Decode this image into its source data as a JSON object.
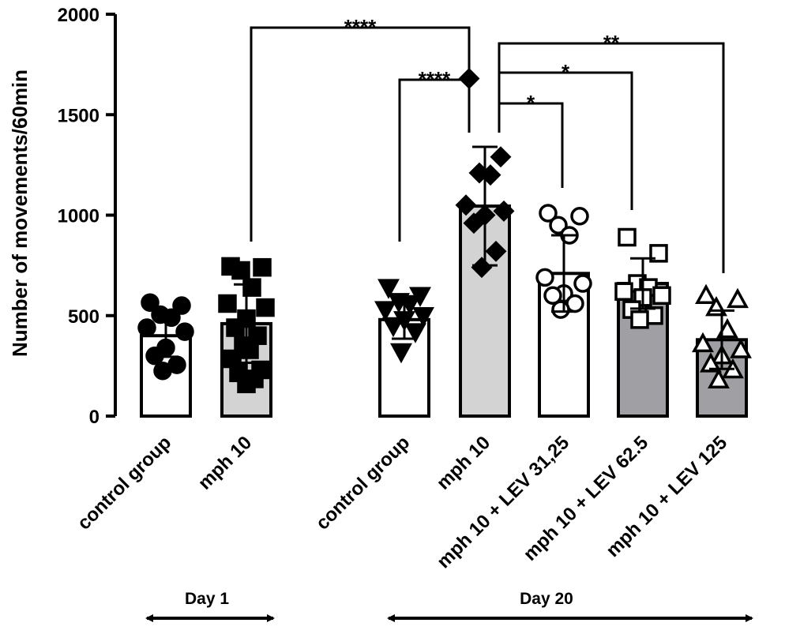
{
  "chart_data": {
    "type": "bar",
    "ylabel": "Number of movements/60min",
    "ylim": [
      0,
      2000
    ],
    "yticks": [
      "0",
      "500",
      "1000",
      "1500",
      "2000"
    ],
    "groups": [
      {
        "label": "Day 1",
        "categories": [
          "control group",
          "mph 10"
        ]
      },
      {
        "label": "Day 20",
        "categories": [
          "control group",
          "mph 10",
          "mph 10 + LEV 31,25",
          "mph 10 + LEV 62.5",
          "mph 10 + LEV 125"
        ]
      }
    ],
    "bars": [
      {
        "category": "control group",
        "day": "Day 1",
        "mean": 400,
        "sd": 105,
        "fill": "#ffffff",
        "marker": "circle-filled",
        "points": [
          565,
          550,
          505,
          490,
          440,
          420,
          340,
          300,
          255,
          225
        ]
      },
      {
        "category": "mph 10",
        "day": "Day 1",
        "mean": 460,
        "sd": 195,
        "fill": "#d3d3d3",
        "marker": "square-filled",
        "points": [
          745,
          740,
          725,
          640,
          560,
          540,
          485,
          440,
          400,
          350,
          330,
          285,
          230,
          215,
          185,
          160
        ]
      },
      {
        "category": "control group",
        "day": "Day 20",
        "mean": 480,
        "sd": 95,
        "fill": "#ffffff",
        "marker": "triangle-down-filled",
        "points": [
          640,
          600,
          570,
          560,
          530,
          500,
          480,
          450,
          420,
          320
        ]
      },
      {
        "category": "mph 10",
        "day": "Day 20",
        "mean": 1045,
        "sd": 295,
        "fill": "#d3d3d3",
        "marker": "diamond-filled",
        "points": [
          1680,
          1290,
          1210,
          1200,
          1050,
          1020,
          1000,
          960,
          820,
          740
        ]
      },
      {
        "category": "mph 10 + LEV 31,25",
        "day": "Day 20",
        "mean": 710,
        "sd": 190,
        "fill": "#ffffff",
        "marker": "circle-open",
        "points": [
          1010,
          995,
          950,
          900,
          690,
          660,
          610,
          600,
          560,
          530
        ]
      },
      {
        "category": "mph 10 + LEV 62.5",
        "day": "Day 20",
        "mean": 660,
        "sd": 125,
        "fill": "#a0a0a4",
        "marker": "square-open",
        "points": [
          890,
          810,
          660,
          640,
          620,
          600,
          590,
          530,
          500,
          480
        ]
      },
      {
        "category": "mph 10 + LEV 125",
        "day": "Day 20",
        "mean": 380,
        "sd": 145,
        "fill": "#a0a0a4",
        "marker": "triangle-up-open",
        "points": [
          600,
          580,
          540,
          430,
          360,
          330,
          300,
          260,
          230,
          180
        ]
      }
    ],
    "significance": [
      {
        "from": 1,
        "to": 3,
        "label": "****"
      },
      {
        "from": 2,
        "to": 3,
        "label": "****"
      },
      {
        "from": 3,
        "to": 4,
        "label": "*"
      },
      {
        "from": 3,
        "to": 5,
        "label": "*"
      },
      {
        "from": 3,
        "to": 6,
        "label": "**"
      }
    ]
  }
}
